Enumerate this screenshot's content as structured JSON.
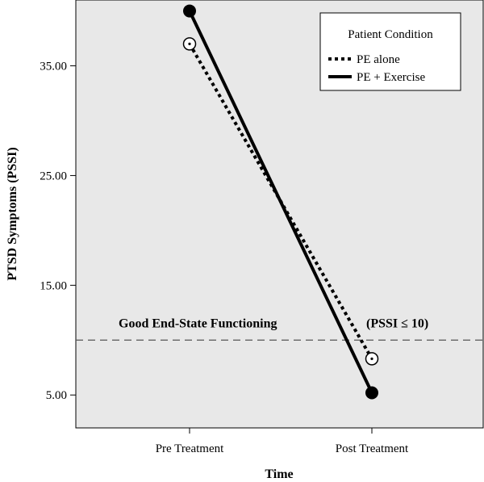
{
  "chart_data": {
    "type": "line",
    "xlabel": "Time",
    "ylabel": "PTSD Symptoms (PSSI)",
    "categories": [
      "Pre Treatment",
      "Post Treatment"
    ],
    "y_ticks": [
      "5.00",
      "15.00",
      "25.00",
      "35.00"
    ],
    "y_tick_values": [
      5,
      15,
      25,
      35
    ],
    "ylim": [
      2.0,
      41.0
    ],
    "series": [
      {
        "name": "PE alone",
        "values": [
          37.0,
          8.3
        ],
        "line_style": "dotted",
        "marker": "open-circle-with-dot",
        "color": "#000000"
      },
      {
        "name": "PE + Exercise",
        "values": [
          40.0,
          5.2
        ],
        "line_style": "solid",
        "marker": "filled-circle",
        "color": "#000000"
      }
    ],
    "legend": {
      "title": "Patient Condition",
      "position": "top-right"
    },
    "reference_line": {
      "y": 10,
      "style": "dashed",
      "label_left": "Good End-State Functioning",
      "label_right": "(PSSI ≤ 10)"
    },
    "plot_background": "#e8e8e8",
    "grid": false
  }
}
